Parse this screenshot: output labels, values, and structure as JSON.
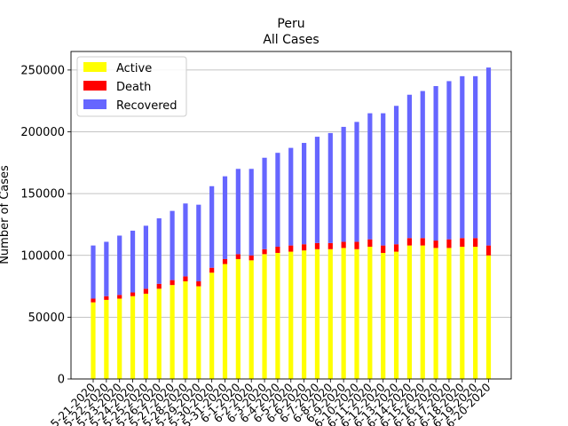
{
  "chart_data": {
    "type": "bar",
    "stacked": true,
    "title": "Peru",
    "subtitle": "All Cases",
    "xlabel": "",
    "ylabel": "Number of Cases",
    "ylim": [
      0,
      265000
    ],
    "yticks": [
      0,
      50000,
      100000,
      150000,
      200000,
      250000
    ],
    "grid": "horizontal",
    "legend_position": "top-left",
    "categories": [
      "5-21-2020",
      "5-22-2020",
      "5-23-2020",
      "5-24-2020",
      "5-25-2020",
      "5-26-2020",
      "5-27-2020",
      "5-28-2020",
      "5-29-2020",
      "5-30-2020",
      "5-31-2020",
      "6-1-2020",
      "6-2-2020",
      "6-3-2020",
      "6-4-2020",
      "6-5-2020",
      "6-6-2020",
      "6-7-2020",
      "6-8-2020",
      "6-9-2020",
      "6-10-2020",
      "6-11-2020",
      "6-12-2020",
      "6-13-2020",
      "6-14-2020",
      "6-15-2020",
      "6-16-2020",
      "6-17-2020",
      "6-18-2020",
      "6-19-2020",
      "6-20-2020"
    ],
    "series": [
      {
        "name": "Active",
        "color": "#ffff00",
        "values": [
          62000,
          64000,
          65000,
          67000,
          69000,
          73000,
          76000,
          79000,
          75000,
          86000,
          93000,
          97000,
          96000,
          101000,
          102000,
          103000,
          104000,
          105000,
          105000,
          106000,
          105000,
          107000,
          102000,
          103000,
          108000,
          108000,
          106000,
          106000,
          107000,
          107000,
          100000
        ]
      },
      {
        "name": "Death",
        "color": "#ff0000",
        "values": [
          3000,
          3000,
          3000,
          3000,
          4000,
          4000,
          4000,
          4000,
          4000,
          4000,
          4000,
          4000,
          4000,
          4000,
          5000,
          5000,
          5000,
          5000,
          5000,
          5000,
          6000,
          6000,
          6000,
          6000,
          6000,
          6000,
          6000,
          7000,
          7000,
          7000,
          8000
        ]
      },
      {
        "name": "Recovered",
        "color": "#6666ff",
        "values": [
          43000,
          44000,
          48000,
          50000,
          51000,
          53000,
          56000,
          59000,
          62000,
          66000,
          67000,
          69000,
          70000,
          74000,
          76000,
          79000,
          82000,
          86000,
          89000,
          93000,
          97000,
          102000,
          107000,
          112000,
          116000,
          119000,
          125000,
          128000,
          131000,
          131000,
          144000
        ]
      }
    ]
  }
}
